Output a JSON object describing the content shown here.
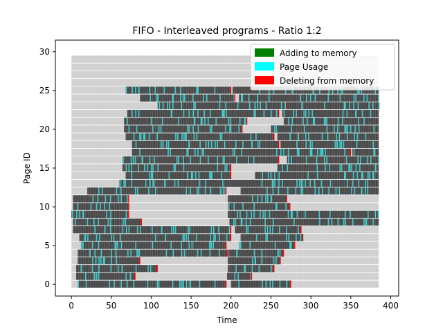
{
  "chart_data": {
    "type": "heatmap",
    "title": "FIFO - Interleaved programs - Ratio 1:2",
    "xlabel": "Time",
    "ylabel": "Page ID",
    "xlim": [
      -20,
      410
    ],
    "ylim": [
      -1.5,
      31.5
    ],
    "xticks": [
      0,
      50,
      100,
      150,
      200,
      250,
      300,
      350,
      400
    ],
    "yticks": [
      0,
      5,
      10,
      15,
      20,
      25,
      30
    ],
    "time_steps": 385,
    "pages": 30,
    "legend": {
      "position": "upper right",
      "entries": [
        {
          "label": "Adding to memory",
          "color": "#008000"
        },
        {
          "label": "Page Usage",
          "color": "#00ffff"
        },
        {
          "label": "Deleting from memory",
          "color": "#ff0000"
        }
      ]
    },
    "colors": {
      "empty_cell": "#d0d0d0",
      "in_memory_cell": "#4a4a4a",
      "usage": "#3cc8c8",
      "delete": "#ff0000",
      "add": "#008000"
    },
    "residency": [
      {
        "page": 0,
        "intervals": [
          [
            8,
            194
          ],
          [
            200,
            275
          ]
        ]
      },
      {
        "page": 1,
        "intervals": [
          [
            6,
            80
          ],
          [
            195,
            226
          ]
        ]
      },
      {
        "page": 2,
        "intervals": [
          [
            6,
            108
          ],
          [
            196,
            254
          ]
        ]
      },
      {
        "page": 3,
        "intervals": [
          [
            8,
            86
          ],
          [
            196,
            262
          ]
        ]
      },
      {
        "page": 4,
        "intervals": [
          [
            8,
            196
          ],
          [
            197,
            266
          ]
        ]
      },
      {
        "page": 5,
        "intervals": [
          [
            12,
            194
          ],
          [
            210,
            280
          ]
        ]
      },
      {
        "page": 6,
        "intervals": [
          [
            10,
            200
          ],
          [
            212,
            290
          ]
        ]
      },
      {
        "page": 7,
        "intervals": [
          [
            2,
            200
          ],
          [
            205,
            288
          ]
        ]
      },
      {
        "page": 8,
        "intervals": [
          [
            2,
            88
          ],
          [
            198,
            385
          ]
        ]
      },
      {
        "page": 9,
        "intervals": [
          [
            0,
            72
          ],
          [
            196,
            385
          ]
        ]
      },
      {
        "page": 10,
        "intervals": [
          [
            2,
            72
          ],
          [
            196,
            274
          ]
        ]
      },
      {
        "page": 11,
        "intervals": [
          [
            2,
            72
          ],
          [
            196,
            270
          ]
        ]
      },
      {
        "page": 12,
        "intervals": [
          [
            20,
            194
          ],
          [
            212,
            385
          ]
        ]
      },
      {
        "page": 13,
        "intervals": [
          [
            60,
            385
          ]
        ]
      },
      {
        "page": 14,
        "intervals": [
          [
            68,
            200
          ],
          [
            230,
            385
          ]
        ]
      },
      {
        "page": 15,
        "intervals": [
          [
            64,
            200
          ],
          [
            258,
            385
          ]
        ]
      },
      {
        "page": 16,
        "intervals": [
          [
            64,
            260
          ],
          [
            270,
            385
          ]
        ]
      },
      {
        "page": 17,
        "intervals": [
          [
            76,
            350
          ],
          [
            352,
            385
          ]
        ]
      },
      {
        "page": 18,
        "intervals": [
          [
            76,
            260
          ],
          [
            262,
            385
          ]
        ]
      },
      {
        "page": 19,
        "intervals": [
          [
            68,
            254
          ],
          [
            258,
            385
          ]
        ]
      },
      {
        "page": 20,
        "intervals": [
          [
            66,
            214
          ],
          [
            250,
            385
          ]
        ]
      },
      {
        "page": 21,
        "intervals": [
          [
            66,
            220
          ],
          [
            266,
            385
          ]
        ]
      },
      {
        "page": 22,
        "intervals": [
          [
            70,
            260
          ],
          [
            264,
            385
          ]
        ]
      },
      {
        "page": 23,
        "intervals": [
          [
            108,
            270
          ],
          [
            270,
            385
          ]
        ]
      },
      {
        "page": 24,
        "intervals": [
          [
            86,
            205
          ],
          [
            210,
            385
          ]
        ]
      },
      {
        "page": 25,
        "intervals": [
          [
            68,
            200
          ],
          [
            202,
            385
          ]
        ]
      }
    ]
  }
}
